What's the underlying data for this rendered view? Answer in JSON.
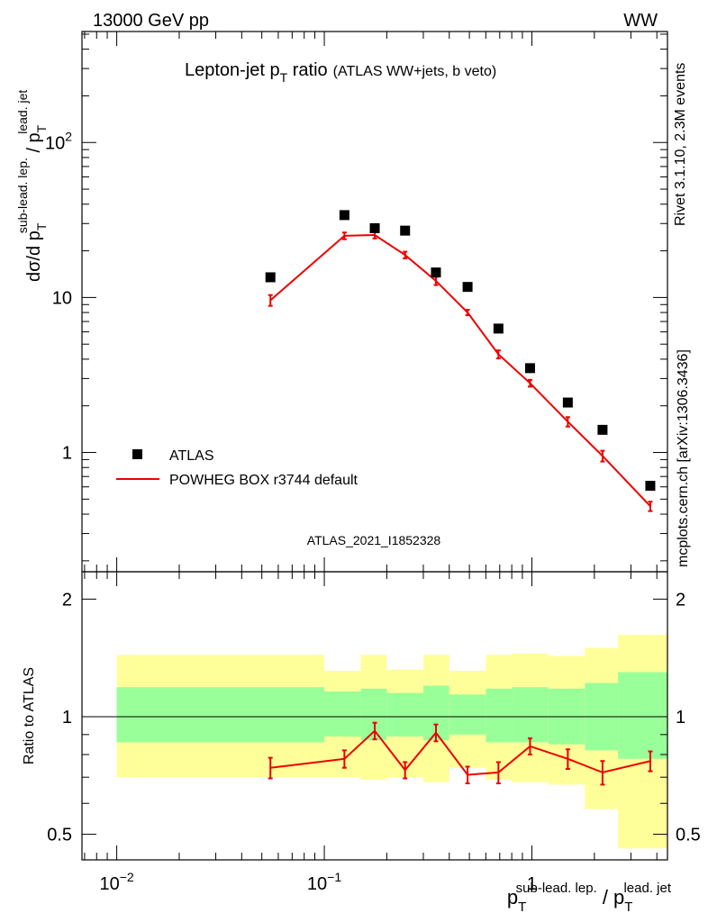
{
  "header": {
    "energy_label": "13000 GeV pp",
    "process_label": "WW"
  },
  "side": {
    "rivet_label": "Rivet 3.1.10,  2.3M events",
    "source_label": "mcplots.cern.ch [arXiv:1306.3436]"
  },
  "chart_data": {
    "type": "line",
    "title_main": "Lepton-jet p",
    "title_sub": "T",
    "title_tail": " ratio",
    "title_paren": "(ATLAS WW+jets, b veto)",
    "analysis_id": "ATLAS_2021_I1852328",
    "xscale": "log",
    "xlim": [
      0.0068,
      4.5
    ],
    "x_ticks": [
      {
        "value": 0.01,
        "base": "10",
        "exp": "−2"
      },
      {
        "value": 0.1,
        "base": "10",
        "exp": "−1"
      },
      {
        "value": 1,
        "base": "1",
        "exp": ""
      }
    ],
    "xlabel": {
      "p1": "p",
      "sub1": "T",
      "sup1": "sub-lead. lep.",
      "slash": " / p",
      "sub2": "T",
      "sup2": "lead. jet"
    },
    "ylabel": {
      "lead": "dσ/d p",
      "sub1": "T",
      "sup1": "sub-lead. lep.",
      "slash": " / p",
      "sub2": "T",
      "sup2": "lead. jet"
    },
    "yscale": "log",
    "ylim": [
      0.17,
      520
    ],
    "y_ticks": [
      {
        "value": 1,
        "base": "1",
        "exp": ""
      },
      {
        "value": 10,
        "base": "10",
        "exp": ""
      },
      {
        "value": 100,
        "base": "10",
        "exp": "2"
      }
    ],
    "legend": {
      "position": "bottom-left",
      "atlas": "ATLAS",
      "mc": "POWHEG BOX r3744 default"
    },
    "atlas": {
      "x": [
        0.055,
        0.125,
        0.175,
        0.245,
        0.345,
        0.49,
        0.69,
        0.98,
        1.49,
        2.19,
        3.72
      ],
      "y": [
        13.5,
        34,
        28,
        27,
        14.5,
        11.7,
        6.3,
        3.5,
        2.1,
        1.4,
        0.61
      ]
    },
    "mc": {
      "x": [
        0.055,
        0.125,
        0.175,
        0.245,
        0.345,
        0.49,
        0.69,
        0.98,
        1.49,
        2.19,
        3.72
      ],
      "y": [
        9.6,
        25,
        25.3,
        18.8,
        12.8,
        8.0,
        4.3,
        2.8,
        1.58,
        0.95,
        0.45
      ],
      "err": [
        0.08,
        0.05,
        0.05,
        0.05,
        0.06,
        0.04,
        0.06,
        0.05,
        0.07,
        0.08,
        0.07
      ]
    },
    "ratio": {
      "ylabel": "Ratio to ATLAS",
      "yscale": "log",
      "ylim": [
        0.43,
        2.35
      ],
      "y_ticks": [
        0.5,
        1,
        2
      ],
      "y_tick_labels": [
        "0.5",
        "1",
        "2"
      ],
      "reference": 1,
      "values": [
        0.74,
        0.78,
        0.92,
        0.73,
        0.91,
        0.71,
        0.72,
        0.84,
        0.78,
        0.72,
        0.77
      ],
      "errors": [
        0.045,
        0.04,
        0.045,
        0.035,
        0.045,
        0.035,
        0.045,
        0.04,
        0.045,
        0.05,
        0.045
      ],
      "bands": [
        {
          "x0": 0.01,
          "x1": 0.1,
          "inner": [
            0.86,
            1.19
          ],
          "outer": [
            0.7,
            1.44
          ]
        },
        {
          "x0": 0.1,
          "x1": 0.15,
          "inner": [
            0.89,
            1.16
          ],
          "outer": [
            0.7,
            1.31
          ]
        },
        {
          "x0": 0.15,
          "x1": 0.2,
          "inner": [
            0.87,
            1.18
          ],
          "outer": [
            0.69,
            1.44
          ]
        },
        {
          "x0": 0.2,
          "x1": 0.3,
          "inner": [
            0.89,
            1.15
          ],
          "outer": [
            0.7,
            1.32
          ]
        },
        {
          "x0": 0.3,
          "x1": 0.4,
          "inner": [
            0.87,
            1.2
          ],
          "outer": [
            0.68,
            1.44
          ]
        },
        {
          "x0": 0.4,
          "x1": 0.6,
          "inner": [
            0.9,
            1.14
          ],
          "outer": [
            0.74,
            1.31
          ]
        },
        {
          "x0": 0.6,
          "x1": 0.8,
          "inner": [
            0.86,
            1.18
          ],
          "outer": [
            0.69,
            1.44
          ]
        },
        {
          "x0": 0.8,
          "x1": 1.2,
          "inner": [
            0.86,
            1.19
          ],
          "outer": [
            0.68,
            1.45
          ]
        },
        {
          "x0": 1.2,
          "x1": 1.8,
          "inner": [
            0.85,
            1.18
          ],
          "outer": [
            0.67,
            1.43
          ]
        },
        {
          "x0": 1.8,
          "x1": 2.6,
          "inner": [
            0.82,
            1.22
          ],
          "outer": [
            0.58,
            1.5
          ]
        },
        {
          "x0": 2.6,
          "x1": 4.5,
          "inner": [
            0.78,
            1.3
          ],
          "outer": [
            0.46,
            1.62
          ]
        }
      ],
      "inner_color": "#99ff99",
      "outer_color": "#ffff99"
    },
    "colors": {
      "atlas": "#000000",
      "mc": "#ee0000",
      "analysis_label": "#999999",
      "side_text": "#888888"
    }
  }
}
